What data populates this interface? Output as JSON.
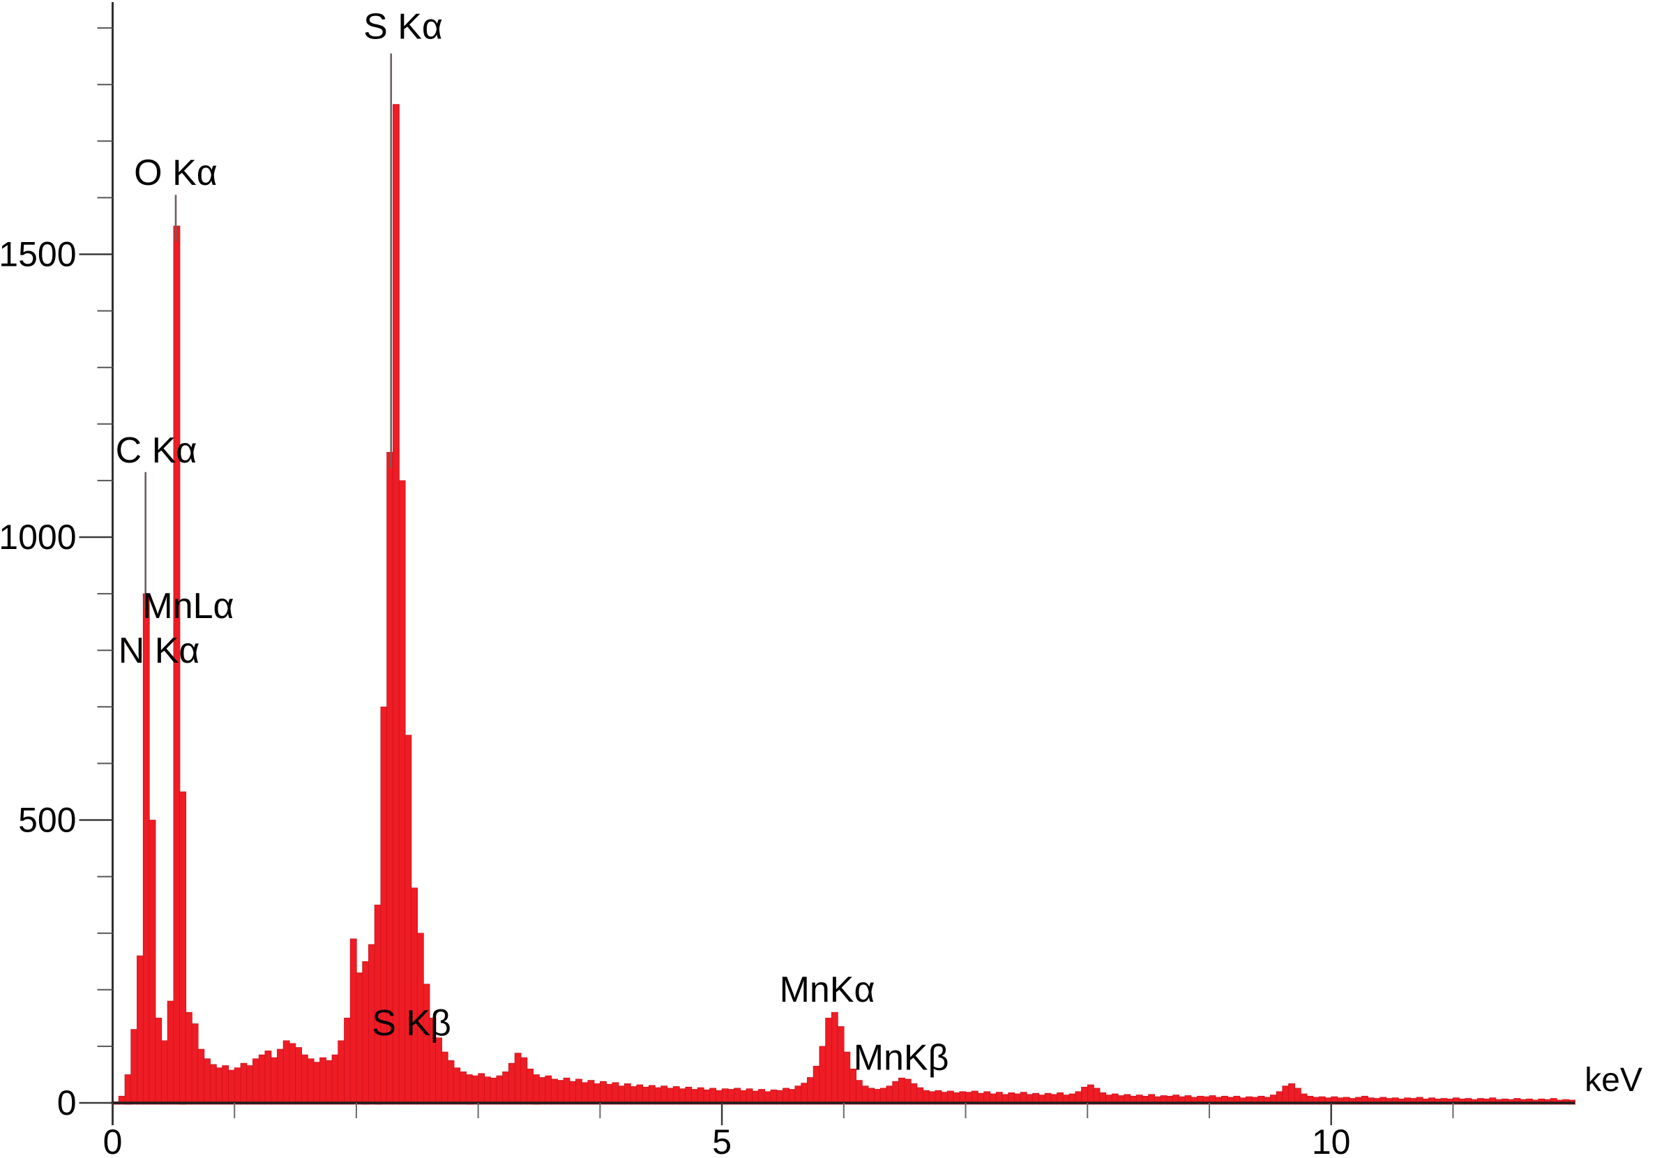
{
  "figure": {
    "kind": "EDS / EDX X-ray emission spectrum",
    "background": "#ffffff"
  },
  "chart_data": {
    "type": "bar",
    "title": "",
    "xlabel": "keV",
    "ylabel": "",
    "grid": false,
    "legend": "none",
    "series_color": "#ee1c24",
    "series_edge_color": "#c8101c",
    "axis_color": "#2f2f2f",
    "marker_line_color": "#6b5f5f",
    "x_axis": {
      "min": 0,
      "max": 12,
      "unit_label": "keV",
      "major_ticks": [
        {
          "v": 0,
          "label": "0"
        },
        {
          "v": 5,
          "label": "5"
        },
        {
          "v": 10,
          "label": "10"
        }
      ],
      "minor_tick_step": 1
    },
    "y_axis": {
      "min": 0,
      "max": 1950,
      "major_ticks": [
        {
          "v": 0,
          "label": "0"
        },
        {
          "v": 500,
          "label": "500"
        },
        {
          "v": 1000,
          "label": "1000"
        },
        {
          "v": 1500,
          "label": "1500"
        }
      ],
      "minor_tick_step": 100
    },
    "bins": {
      "start": 0.0,
      "step": 0.05
    },
    "counts": [
      2,
      12,
      50,
      130,
      260,
      900,
      500,
      150,
      110,
      180,
      1550,
      550,
      160,
      140,
      95,
      78,
      68,
      62,
      66,
      58,
      62,
      70,
      66,
      78,
      85,
      92,
      80,
      95,
      110,
      105,
      98,
      85,
      78,
      72,
      80,
      75,
      85,
      110,
      150,
      290,
      230,
      250,
      280,
      350,
      700,
      1150,
      1765,
      1100,
      650,
      380,
      300,
      210,
      150,
      115,
      90,
      75,
      62,
      55,
      50,
      48,
      52,
      46,
      44,
      48,
      55,
      70,
      88,
      80,
      60,
      50,
      45,
      48,
      42,
      40,
      44,
      38,
      42,
      36,
      40,
      34,
      38,
      33,
      36,
      30,
      34,
      29,
      32,
      28,
      31,
      27,
      30,
      26,
      29,
      25,
      28,
      24,
      27,
      23,
      26,
      22,
      25,
      24,
      26,
      22,
      25,
      21,
      24,
      20,
      23,
      22,
      26,
      24,
      30,
      35,
      45,
      65,
      100,
      150,
      160,
      135,
      90,
      60,
      40,
      30,
      26,
      24,
      26,
      30,
      38,
      44,
      42,
      34,
      27,
      22,
      20,
      22,
      19,
      21,
      18,
      20,
      19,
      21,
      17,
      20,
      16,
      19,
      15,
      18,
      16,
      19,
      15,
      17,
      14,
      17,
      15,
      18,
      14,
      16,
      20,
      28,
      32,
      26,
      18,
      14,
      16,
      13,
      15,
      12,
      14,
      12,
      15,
      11,
      13,
      12,
      14,
      11,
      13,
      10,
      12,
      11,
      13,
      10,
      12,
      10,
      12,
      9,
      11,
      10,
      12,
      10,
      14,
      20,
      30,
      34,
      26,
      16,
      12,
      10,
      11,
      9,
      11,
      9,
      10,
      8,
      10,
      12,
      9,
      8,
      10,
      8,
      9,
      7,
      9,
      8,
      10,
      7,
      9,
      7,
      8,
      7,
      9,
      7,
      8,
      6,
      8,
      7,
      9,
      6,
      7,
      6,
      8,
      6,
      7,
      5,
      7,
      6,
      8,
      5,
      6,
      5
    ],
    "peak_markers": [
      {
        "peak": "C Ka",
        "x_kev": 0.27,
        "counts": 1115
      },
      {
        "peak": "O Ka",
        "x_kev": 0.518,
        "counts": 1605
      },
      {
        "peak": "S Ka",
        "x_kev": 2.285,
        "counts": 1855
      }
    ],
    "annotations": [
      {
        "text": "S Kα",
        "x_kev": 2.384,
        "y_counts": 1903
      },
      {
        "text": "O Kα",
        "x_kev": 0.518,
        "y_counts": 1645
      },
      {
        "text": "C Kα",
        "x_kev": 0.358,
        "y_counts": 1154
      },
      {
        "text": "MnLα",
        "x_kev": 0.621,
        "y_counts": 879
      },
      {
        "text": "N Kα",
        "x_kev": 0.381,
        "y_counts": 800
      },
      {
        "text": "S Kβ",
        "x_kev": 2.453,
        "y_counts": 142
      },
      {
        "text": "MnKα",
        "x_kev": 5.864,
        "y_counts": 201
      },
      {
        "text": "MnKβ",
        "x_kev": 6.471,
        "y_counts": 81
      }
    ]
  }
}
